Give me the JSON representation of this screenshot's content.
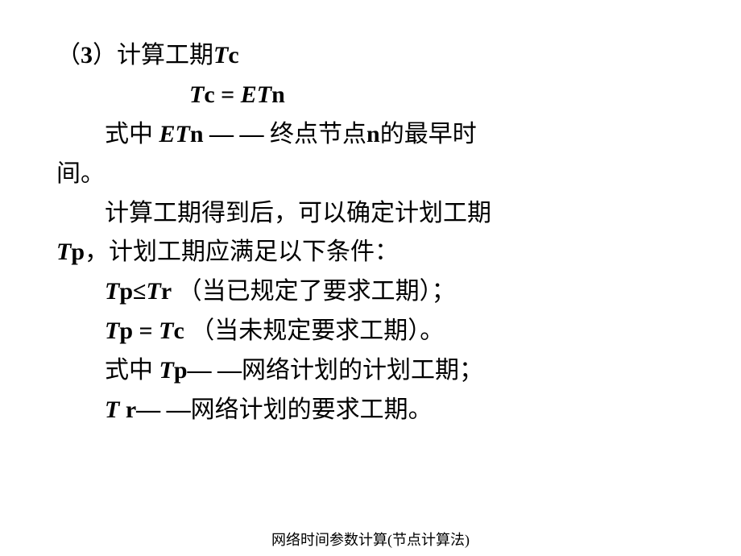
{
  "slide": {
    "text_color": "#000000",
    "background_color": "#ffffff",
    "body_fontsize": 30,
    "footer_fontsize": 18,
    "lines": {
      "l1_a": "（",
      "l1_b": "3",
      "l1_c": "）计算工期",
      "l1_d": "T",
      "l1_e": "c",
      "l2_a": "T",
      "l2_b": "c = ",
      "l2_c": "ET",
      "l2_d": "n",
      "l3_a": "式中   ",
      "l3_b": "ET",
      "l3_c": "n — —",
      "l3_d": " 终点节点",
      "l3_e": "n",
      "l3_f": "的最早时",
      "l4": "间。",
      "l5": "计算工期得到后，可以确定计划工期",
      "l6_a": "T",
      "l6_b": "p",
      "l6_c": "，计划工期应满足以下条件：",
      "l7_a": "T",
      "l7_b": "p≤",
      "l7_c": "T",
      "l7_d": "r",
      "l7_e": "   （当已规定了要求工期）；",
      "l8_a": "T",
      "l8_b": "p = ",
      "l8_c": "T",
      "l8_d": "c",
      "l8_e": "   （当未规定要求工期）。",
      "l9_a": "式中   ",
      "l9_b": "T",
      "l9_c": "p— —",
      "l9_d": "网络计划的计划工期；",
      "l10_a": "T ",
      "l10_b": "r— —",
      "l10_c": "网络计划的要求工期。"
    },
    "footer": "网络时间参数计算(节点计算法)"
  }
}
